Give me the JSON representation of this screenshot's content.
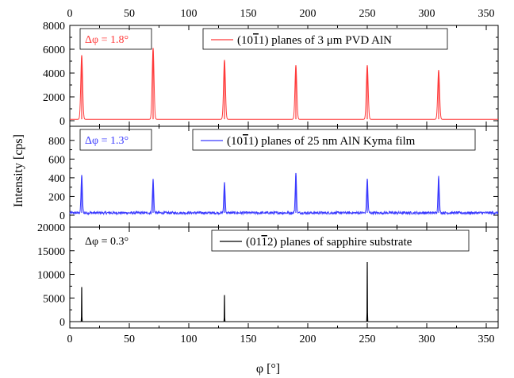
{
  "chart_data": {
    "type": "line",
    "xlabel": "φ [°]",
    "ylabel": "Intensity [cps]",
    "xlim": [
      0,
      360
    ],
    "x_ticks": [
      0,
      50,
      100,
      150,
      200,
      250,
      300,
      350
    ],
    "x_ticks_on_top": true,
    "grid": false,
    "panels": [
      {
        "id": "pvd",
        "color": "#ff3b3b",
        "ylim": [
          0,
          8000
        ],
        "y_ticks": [
          0,
          2000,
          4000,
          6000,
          8000
        ],
        "legend": {
          "series_label_pre": "(10",
          "series_label_bar": "1",
          "series_label_post": "1) planes of 3 μm PVD AlN",
          "position": "top-right"
        },
        "annotation": {
          "text": "Δφ = 1.8°",
          "color": "#ff3b3b",
          "boxed": true,
          "position": "top-left"
        },
        "baseline": 120,
        "noise": 0,
        "fwhm": 1.8,
        "peaks": [
          {
            "x": 10,
            "y": 5500
          },
          {
            "x": 70,
            "y": 6100
          },
          {
            "x": 130,
            "y": 5100
          },
          {
            "x": 190,
            "y": 4650
          },
          {
            "x": 250,
            "y": 4650
          },
          {
            "x": 310,
            "y": 4250
          }
        ]
      },
      {
        "id": "kyma",
        "color": "#3b3bff",
        "ylim": [
          0,
          900
        ],
        "y_ticks": [
          0,
          200,
          400,
          600,
          800
        ],
        "legend": {
          "series_label_pre": "(10",
          "series_label_bar": "1",
          "series_label_post": "1) planes of 25 nm AlN Kyma film",
          "position": "top-right"
        },
        "annotation": {
          "text": "Δφ = 1.3°",
          "color": "#3b3bff",
          "boxed": true,
          "position": "top-left"
        },
        "baseline": 25,
        "noise": 14,
        "fwhm": 1.3,
        "peaks": [
          {
            "x": 10,
            "y": 430
          },
          {
            "x": 70,
            "y": 380
          },
          {
            "x": 130,
            "y": 350
          },
          {
            "x": 190,
            "y": 450
          },
          {
            "x": 250,
            "y": 390
          },
          {
            "x": 310,
            "y": 420
          }
        ]
      },
      {
        "id": "sapphire",
        "color": "#000000",
        "ylim": [
          0,
          20000
        ],
        "y_ticks": [
          0,
          5000,
          10000,
          15000,
          20000
        ],
        "legend": {
          "series_label_pre": "(01",
          "series_label_bar": "1",
          "series_label_post": "2) planes of sapphire substrate",
          "position": "top-right"
        },
        "annotation": {
          "text": "Δφ = 0.3°",
          "color": "#000000",
          "boxed": false,
          "position": "top-left"
        },
        "baseline": 0,
        "noise": 0,
        "fwhm": 0.3,
        "peaks": [
          {
            "x": 10,
            "y": 7300
          },
          {
            "x": 130,
            "y": 5600
          },
          {
            "x": 250,
            "y": 12600
          }
        ]
      }
    ]
  }
}
